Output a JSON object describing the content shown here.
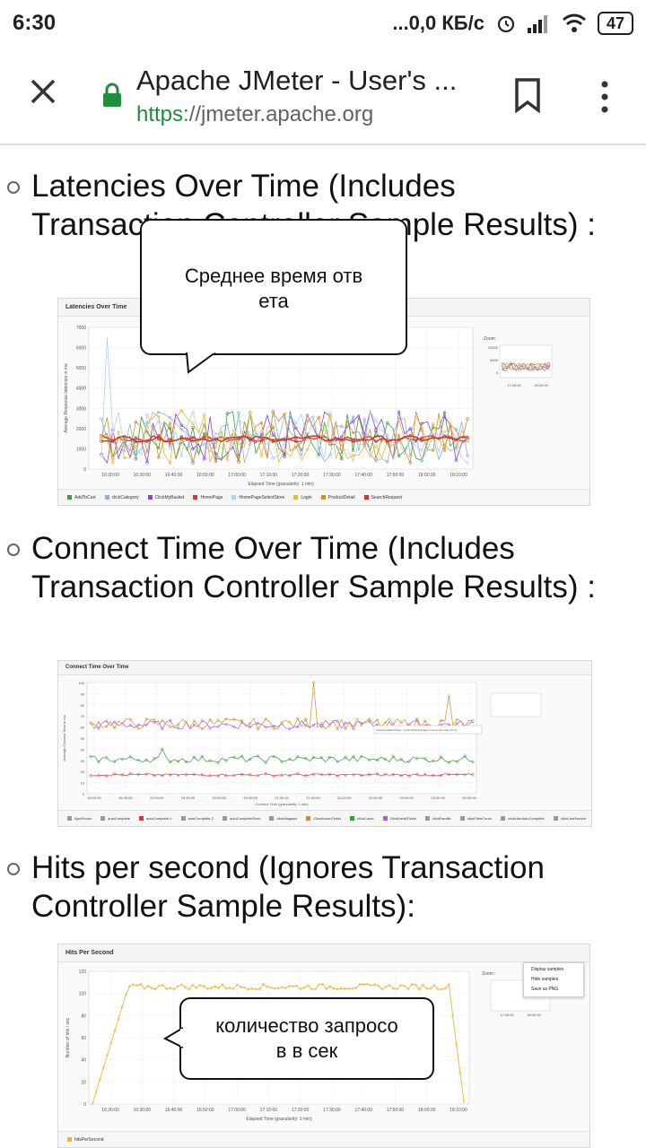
{
  "status_bar": {
    "time": "6:30",
    "network_speed": "...0,0 КБ/с",
    "battery": "47"
  },
  "browser": {
    "title": "Apache JMeter - User's ...",
    "url_scheme": "https",
    "url_sep": "://",
    "url_host": "jmeter.apache.org"
  },
  "sections": [
    {
      "heading": "Latencies Over Time (Includes Transaction Controller Sample Results) :",
      "chart_title": "Latencies Over Time",
      "y_axis_label": "Average Response latencies in ms",
      "x_axis_label": "Elapsed Time (granularity: 1 min)",
      "x_ticks": [
        "16:20:00",
        "16:30:00",
        "16:40:00",
        "16:50:00",
        "17:00:00",
        "17:10:00",
        "17:20:00",
        "17:30:00",
        "17:40:00",
        "17:50:00",
        "18:00:00",
        "18:10:00"
      ],
      "y_ticks": [
        "0",
        "1000",
        "2000",
        "3000",
        "4000",
        "5000",
        "6000",
        "7000"
      ],
      "zoom_label": "Zoom :",
      "zoom_x_ticks": [
        "17:00:00",
        "18:00:00"
      ],
      "zoom_y_ticks": [
        "10000",
        "5000",
        "0"
      ],
      "legend": [
        {
          "label": "AddToCart",
          "color": "#3c9b3c"
        },
        {
          "label": "clickCategory",
          "color": "#8fb0d8"
        },
        {
          "label": "ClickMyBasket",
          "color": "#8b3fd6"
        },
        {
          "label": "HomePage",
          "color": "#d43a3a"
        },
        {
          "label": "HomePageSelectStore",
          "color": "#a9d3f0"
        },
        {
          "label": "Login",
          "color": "#e8b83a"
        },
        {
          "label": "ProductDetail",
          "color": "#c8922f"
        },
        {
          "label": "SearchRequest",
          "color": "#c0392b"
        }
      ]
    },
    {
      "heading": "Connect Time Over Time (Includes Transaction Controller Sample Results) :",
      "chart_title": "Connect Time Over Time",
      "y_axis_label": "Average Connect Time in ms",
      "x_axis_label": "Connect Time (granularity: 1 min)",
      "x_ticks": [
        "18:00:00",
        "18:30:00",
        "19:00:00",
        "19:30:00",
        "20:00:00",
        "20:30:00",
        "21:00:00",
        "21:30:00",
        "22:00:00",
        "22:30:00",
        "23:00:00",
        "23:30:00",
        "00:00:00"
      ],
      "y_ticks": [
        "0",
        "10",
        "20",
        "30",
        "40",
        "50",
        "60",
        "70",
        "80",
        "90",
        "100"
      ],
      "tooltip": "Ordered.RabbitTicket : at 20:18:00 Average connect time was 78 ms",
      "legend": [
        {
          "label": "AjaxFinder",
          "color": "#999999"
        },
        {
          "label": "autoComplete",
          "color": "#999999"
        },
        {
          "label": "autoComplete-1",
          "color": "#d43a3a"
        },
        {
          "label": "autoComplete-2",
          "color": "#999999"
        },
        {
          "label": "autoCompleteStore",
          "color": "#999999"
        },
        {
          "label": "clickMagasin",
          "color": "#999999"
        },
        {
          "label": "ClickAnnonTicket",
          "color": "#c8922f"
        },
        {
          "label": "clickCours",
          "color": "#3c9b3c"
        },
        {
          "label": "ClickDetailTicket",
          "color": "#b05ad6"
        },
        {
          "label": "clickFamille",
          "color": "#999999"
        },
        {
          "label": "clickFiltreCours",
          "color": "#999999"
        },
        {
          "label": "clickLienAutoComplete",
          "color": "#999999"
        },
        {
          "label": "clickLienService",
          "color": "#999999"
        }
      ]
    },
    {
      "heading": "Hits per second (Ignores Transaction Controller Sample Results):",
      "chart_title": "Hits Per Second",
      "y_axis_label": "Number of hits / sec",
      "x_axis_label": "Elapsed Time (granularity: 1 min)",
      "x_ticks": [
        "16:20:00",
        "16:30:00",
        "16:40:00",
        "16:50:00",
        "17:00:00",
        "17:10:00",
        "17:20:00",
        "17:30:00",
        "17:40:00",
        "17:50:00",
        "18:00:00",
        "18:10:00"
      ],
      "y_ticks": [
        "0",
        "20",
        "40",
        "60",
        "80",
        "100",
        "120"
      ],
      "zoom_label": "Zoom :",
      "zoom_x_ticks": [
        "17:00:00",
        "18:00:00"
      ],
      "context_menu": [
        "Display samples",
        "Hide samples",
        "Save as PNG"
      ],
      "legend": [
        {
          "label": "hitsPerSecond",
          "color": "#e8b83a"
        }
      ]
    }
  ],
  "bubbles": [
    {
      "text": "Среднее время отв ета"
    },
    {
      "text": "количество запросо в в сек"
    }
  ]
}
